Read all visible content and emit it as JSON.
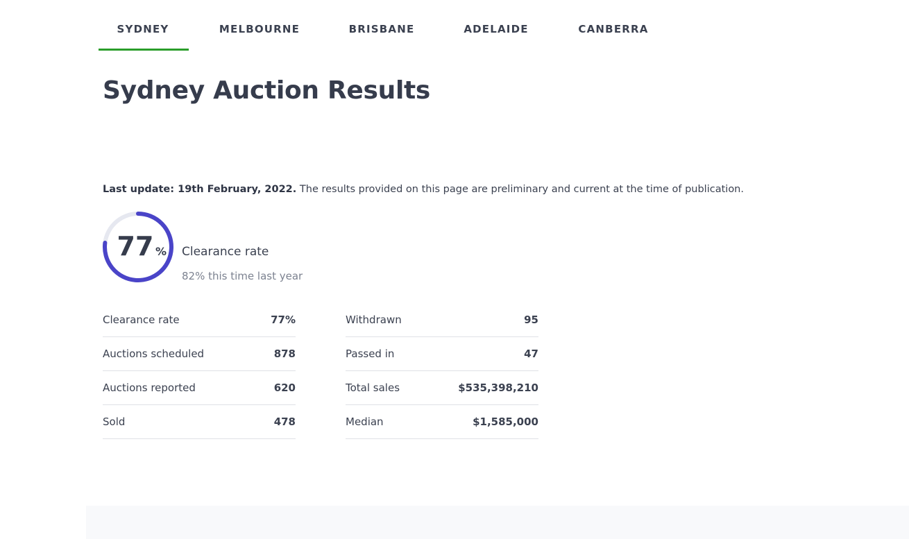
{
  "tabs": [
    "SYDNEY",
    "MELBOURNE",
    "BRISBANE",
    "ADELAIDE",
    "CANBERRA"
  ],
  "header": {
    "title": "Sydney Auction Results"
  },
  "update": {
    "bold": "Last update: 19th February, 2022.",
    "text": "The results provided on this page are preliminary and current at the time of publication."
  },
  "gauge": {
    "value": 77,
    "unit": "%",
    "label": "Clearance rate",
    "comparison": "82% this time last year"
  },
  "stats": [
    [
      [
        "Clearance rate",
        "77%"
      ],
      [
        "Auctions scheduled",
        "878"
      ],
      [
        "Auctions reported",
        "620"
      ],
      [
        "Sold",
        "478"
      ]
    ],
    [
      [
        "Withdrawn",
        "95"
      ],
      [
        "Passed in",
        "47"
      ],
      [
        "Total sales",
        "$535,398,210"
      ],
      [
        "Median",
        "$1,585,000"
      ]
    ]
  ]
}
